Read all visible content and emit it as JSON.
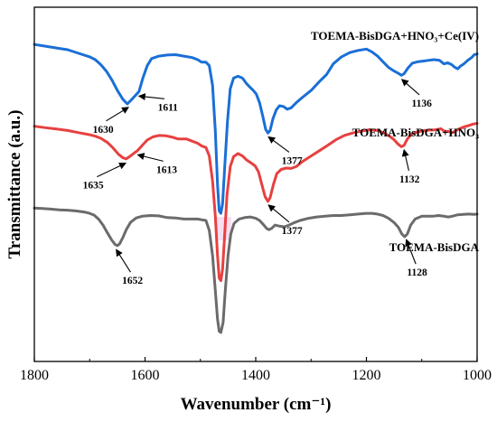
{
  "chart_data": {
    "type": "line",
    "xlabel": "Wavenumber (cm⁻¹)",
    "ylabel": "Transmittance (a.u.)",
    "xlim": [
      1800,
      1000
    ],
    "x_reversed": true,
    "x_ticks": [
      1800,
      1600,
      1400,
      1200,
      1000
    ],
    "y_ticks_shown": false,
    "grid": false,
    "series": [
      {
        "name": "TOEMA-BisDGA+HNO₃+Ce(IV)",
        "color": "#1a6fd6",
        "points": [
          [
            1800,
            0.895
          ],
          [
            1780,
            0.89
          ],
          [
            1760,
            0.885
          ],
          [
            1740,
            0.88
          ],
          [
            1720,
            0.87
          ],
          [
            1700,
            0.86
          ],
          [
            1690,
            0.852
          ],
          [
            1680,
            0.838
          ],
          [
            1670,
            0.82
          ],
          [
            1660,
            0.795
          ],
          [
            1650,
            0.765
          ],
          [
            1640,
            0.74
          ],
          [
            1632,
            0.727
          ],
          [
            1625,
            0.738
          ],
          [
            1618,
            0.75
          ],
          [
            1611,
            0.762
          ],
          [
            1604,
            0.8
          ],
          [
            1596,
            0.835
          ],
          [
            1588,
            0.855
          ],
          [
            1575,
            0.862
          ],
          [
            1560,
            0.865
          ],
          [
            1545,
            0.866
          ],
          [
            1530,
            0.862
          ],
          [
            1515,
            0.858
          ],
          [
            1505,
            0.852
          ],
          [
            1498,
            0.845
          ],
          [
            1490,
            0.845
          ],
          [
            1484,
            0.835
          ],
          [
            1478,
            0.78
          ],
          [
            1473,
            0.65
          ],
          [
            1469,
            0.5
          ],
          [
            1466,
            0.425
          ],
          [
            1463,
            0.418
          ],
          [
            1460,
            0.445
          ],
          [
            1456,
            0.55
          ],
          [
            1451,
            0.68
          ],
          [
            1446,
            0.77
          ],
          [
            1440,
            0.8
          ],
          [
            1432,
            0.805
          ],
          [
            1424,
            0.8
          ],
          [
            1417,
            0.785
          ],
          [
            1411,
            0.775
          ],
          [
            1405,
            0.766
          ],
          [
            1399,
            0.755
          ],
          [
            1393,
            0.73
          ],
          [
            1387,
            0.69
          ],
          [
            1382,
            0.655
          ],
          [
            1378,
            0.645
          ],
          [
            1374,
            0.652
          ],
          [
            1369,
            0.685
          ],
          [
            1363,
            0.71
          ],
          [
            1357,
            0.722
          ],
          [
            1350,
            0.72
          ],
          [
            1343,
            0.712
          ],
          [
            1336,
            0.716
          ],
          [
            1327,
            0.73
          ],
          [
            1316,
            0.745
          ],
          [
            1300,
            0.765
          ],
          [
            1285,
            0.79
          ],
          [
            1272,
            0.81
          ],
          [
            1260,
            0.84
          ],
          [
            1245,
            0.86
          ],
          [
            1230,
            0.872
          ],
          [
            1215,
            0.878
          ],
          [
            1200,
            0.882
          ],
          [
            1190,
            0.874
          ],
          [
            1180,
            0.862
          ],
          [
            1170,
            0.846
          ],
          [
            1160,
            0.83
          ],
          [
            1150,
            0.82
          ],
          [
            1143,
            0.814
          ],
          [
            1137,
            0.808
          ],
          [
            1132,
            0.812
          ],
          [
            1125,
            0.828
          ],
          [
            1117,
            0.842
          ],
          [
            1108,
            0.846
          ],
          [
            1098,
            0.848
          ],
          [
            1088,
            0.85
          ],
          [
            1078,
            0.852
          ],
          [
            1068,
            0.85
          ],
          [
            1060,
            0.84
          ],
          [
            1053,
            0.843
          ],
          [
            1046,
            0.838
          ],
          [
            1040,
            0.83
          ],
          [
            1035,
            0.826
          ],
          [
            1030,
            0.834
          ],
          [
            1024,
            0.84
          ],
          [
            1017,
            0.85
          ],
          [
            1010,
            0.858
          ],
          [
            1005,
            0.866
          ],
          [
            1000,
            0.868
          ]
        ]
      },
      {
        "name": "TOEMA-BisDGA+HNO₃",
        "color": "#e84040",
        "points": [
          [
            1800,
            0.664
          ],
          [
            1780,
            0.66
          ],
          [
            1760,
            0.656
          ],
          [
            1740,
            0.652
          ],
          [
            1720,
            0.646
          ],
          [
            1700,
            0.64
          ],
          [
            1690,
            0.636
          ],
          [
            1680,
            0.63
          ],
          [
            1668,
            0.618
          ],
          [
            1658,
            0.603
          ],
          [
            1648,
            0.585
          ],
          [
            1640,
            0.575
          ],
          [
            1634,
            0.572
          ],
          [
            1628,
            0.578
          ],
          [
            1620,
            0.588
          ],
          [
            1613,
            0.596
          ],
          [
            1605,
            0.61
          ],
          [
            1596,
            0.625
          ],
          [
            1586,
            0.634
          ],
          [
            1575,
            0.638
          ],
          [
            1562,
            0.637
          ],
          [
            1550,
            0.633
          ],
          [
            1540,
            0.628
          ],
          [
            1525,
            0.628
          ],
          [
            1515,
            0.622
          ],
          [
            1505,
            0.616
          ],
          [
            1497,
            0.608
          ],
          [
            1490,
            0.604
          ],
          [
            1484,
            0.58
          ],
          [
            1478,
            0.51
          ],
          [
            1473,
            0.41
          ],
          [
            1469,
            0.3
          ],
          [
            1466,
            0.235
          ],
          [
            1463,
            0.228
          ],
          [
            1460,
            0.26
          ],
          [
            1456,
            0.36
          ],
          [
            1452,
            0.47
          ],
          [
            1446,
            0.55
          ],
          [
            1440,
            0.578
          ],
          [
            1432,
            0.587
          ],
          [
            1424,
            0.58
          ],
          [
            1416,
            0.568
          ],
          [
            1408,
            0.56
          ],
          [
            1401,
            0.552
          ],
          [
            1395,
            0.535
          ],
          [
            1389,
            0.5
          ],
          [
            1383,
            0.465
          ],
          [
            1378,
            0.452
          ],
          [
            1374,
            0.462
          ],
          [
            1368,
            0.5
          ],
          [
            1362,
            0.53
          ],
          [
            1354,
            0.542
          ],
          [
            1345,
            0.546
          ],
          [
            1336,
            0.545
          ],
          [
            1327,
            0.55
          ],
          [
            1315,
            0.565
          ],
          [
            1300,
            0.58
          ],
          [
            1285,
            0.595
          ],
          [
            1270,
            0.61
          ],
          [
            1255,
            0.626
          ],
          [
            1240,
            0.638
          ],
          [
            1225,
            0.645
          ],
          [
            1210,
            0.65
          ],
          [
            1195,
            0.654
          ],
          [
            1180,
            0.652
          ],
          [
            1170,
            0.646
          ],
          [
            1160,
            0.638
          ],
          [
            1150,
            0.626
          ],
          [
            1143,
            0.614
          ],
          [
            1137,
            0.606
          ],
          [
            1132,
            0.61
          ],
          [
            1126,
            0.628
          ],
          [
            1118,
            0.642
          ],
          [
            1108,
            0.648
          ],
          [
            1095,
            0.652
          ],
          [
            1085,
            0.653
          ],
          [
            1075,
            0.654
          ],
          [
            1065,
            0.657
          ],
          [
            1058,
            0.648
          ],
          [
            1052,
            0.65
          ],
          [
            1046,
            0.645
          ],
          [
            1040,
            0.65
          ],
          [
            1032,
            0.657
          ],
          [
            1024,
            0.662
          ],
          [
            1015,
            0.666
          ],
          [
            1008,
            0.67
          ],
          [
            1000,
            0.672
          ]
        ]
      },
      {
        "name": "TOEMA-BisDGA",
        "color": "#6b6b6b",
        "points": [
          [
            1800,
            0.433
          ],
          [
            1785,
            0.432
          ],
          [
            1770,
            0.43
          ],
          [
            1755,
            0.428
          ],
          [
            1740,
            0.427
          ],
          [
            1725,
            0.425
          ],
          [
            1710,
            0.422
          ],
          [
            1700,
            0.418
          ],
          [
            1692,
            0.413
          ],
          [
            1684,
            0.402
          ],
          [
            1676,
            0.385
          ],
          [
            1668,
            0.363
          ],
          [
            1660,
            0.342
          ],
          [
            1654,
            0.33
          ],
          [
            1650,
            0.327
          ],
          [
            1646,
            0.332
          ],
          [
            1640,
            0.35
          ],
          [
            1634,
            0.372
          ],
          [
            1626,
            0.393
          ],
          [
            1616,
            0.405
          ],
          [
            1605,
            0.41
          ],
          [
            1590,
            0.412
          ],
          [
            1575,
            0.411
          ],
          [
            1560,
            0.406
          ],
          [
            1545,
            0.405
          ],
          [
            1530,
            0.402
          ],
          [
            1515,
            0.402
          ],
          [
            1505,
            0.402
          ],
          [
            1498,
            0.4
          ],
          [
            1490,
            0.398
          ],
          [
            1484,
            0.37
          ],
          [
            1478,
            0.3
          ],
          [
            1473,
            0.2
          ],
          [
            1469,
            0.12
          ],
          [
            1466,
            0.085
          ],
          [
            1463,
            0.082
          ],
          [
            1459,
            0.11
          ],
          [
            1455,
            0.2
          ],
          [
            1450,
            0.3
          ],
          [
            1445,
            0.36
          ],
          [
            1439,
            0.39
          ],
          [
            1430,
            0.402
          ],
          [
            1420,
            0.406
          ],
          [
            1410,
            0.408
          ],
          [
            1400,
            0.404
          ],
          [
            1393,
            0.398
          ],
          [
            1386,
            0.386
          ],
          [
            1380,
            0.375
          ],
          [
            1376,
            0.372
          ],
          [
            1371,
            0.376
          ],
          [
            1365,
            0.385
          ],
          [
            1357,
            0.382
          ],
          [
            1348,
            0.38
          ],
          [
            1340,
            0.385
          ],
          [
            1330,
            0.392
          ],
          [
            1320,
            0.398
          ],
          [
            1305,
            0.404
          ],
          [
            1290,
            0.408
          ],
          [
            1275,
            0.41
          ],
          [
            1260,
            0.412
          ],
          [
            1245,
            0.412
          ],
          [
            1230,
            0.414
          ],
          [
            1215,
            0.416
          ],
          [
            1200,
            0.418
          ],
          [
            1190,
            0.418
          ],
          [
            1180,
            0.416
          ],
          [
            1170,
            0.412
          ],
          [
            1160,
            0.404
          ],
          [
            1150,
            0.392
          ],
          [
            1142,
            0.378
          ],
          [
            1136,
            0.36
          ],
          [
            1131,
            0.352
          ],
          [
            1126,
            0.36
          ],
          [
            1120,
            0.385
          ],
          [
            1112,
            0.402
          ],
          [
            1100,
            0.41
          ],
          [
            1090,
            0.41
          ],
          [
            1080,
            0.41
          ],
          [
            1070,
            0.412
          ],
          [
            1060,
            0.41
          ],
          [
            1052,
            0.408
          ],
          [
            1045,
            0.41
          ],
          [
            1035,
            0.414
          ],
          [
            1025,
            0.415
          ],
          [
            1015,
            0.416
          ],
          [
            1005,
            0.415
          ],
          [
            1000,
            0.416
          ]
        ]
      }
    ],
    "annotations": [
      {
        "text": "1630",
        "series": 0,
        "x": 1630
      },
      {
        "text": "1611",
        "series": 0,
        "x": 1611
      },
      {
        "text": "1377",
        "series": 0,
        "x": 1377
      },
      {
        "text": "1136",
        "series": 0,
        "x": 1136
      },
      {
        "text": "1635",
        "series": 1,
        "x": 1635
      },
      {
        "text": "1613",
        "series": 1,
        "x": 1613
      },
      {
        "text": "1377",
        "series": 1,
        "x": 1377
      },
      {
        "text": "1132",
        "series": 1,
        "x": 1132
      },
      {
        "text": "1652",
        "series": 2,
        "x": 1652
      },
      {
        "text": "1128",
        "series": 2,
        "x": 1128
      }
    ]
  }
}
